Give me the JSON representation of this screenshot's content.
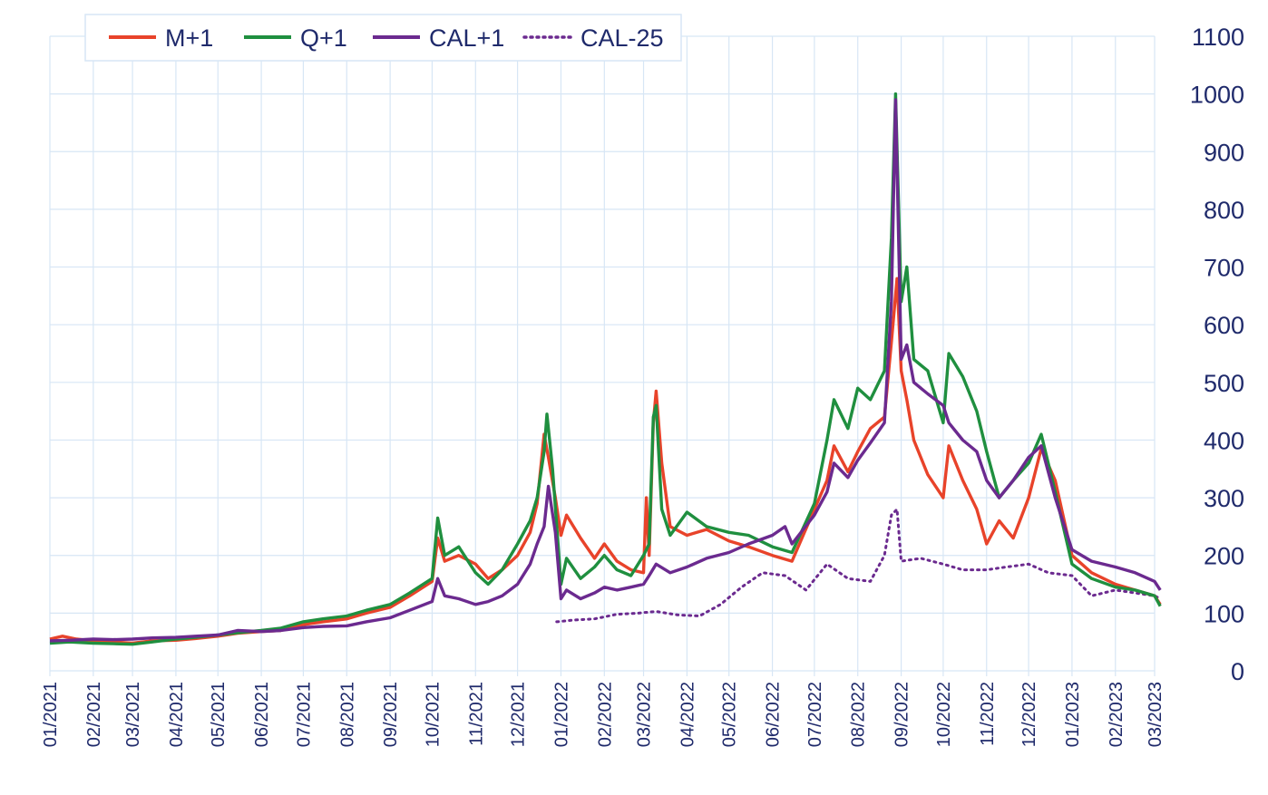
{
  "chart_data": {
    "type": "line",
    "title": "",
    "xlabel": "",
    "ylabel": "",
    "ylim": [
      0,
      1100
    ],
    "y_axis_side": "right",
    "y_ticks": [
      "0",
      "100",
      "200",
      "300",
      "400",
      "500",
      "600",
      "700",
      "800",
      "900",
      "1000",
      "1100"
    ],
    "x_ticks": [
      "01/2021",
      "02/2021",
      "03/2021",
      "04/2021",
      "05/2021",
      "06/2021",
      "07/2021",
      "08/2021",
      "09/2021",
      "10/2021",
      "11/2021",
      "12/2021",
      "01/2022",
      "02/2022",
      "03/2022",
      "04/2022",
      "05/2022",
      "06/2022",
      "07/2022",
      "08/2022",
      "09/2022",
      "10/2022",
      "11/2022",
      "12/2022",
      "01/2023",
      "02/2023",
      "03/2023"
    ],
    "grid": true,
    "legend_position": "top-left",
    "series": [
      {
        "name": "M+1",
        "color": "#e8432a",
        "style": "solid",
        "points": [
          [
            "2021-01-01",
            55
          ],
          [
            "2021-01-10",
            60
          ],
          [
            "2021-01-20",
            55
          ],
          [
            "2021-02-01",
            52
          ],
          [
            "2021-02-15",
            50
          ],
          [
            "2021-03-01",
            48
          ],
          [
            "2021-03-15",
            52
          ],
          [
            "2021-04-01",
            53
          ],
          [
            "2021-04-15",
            56
          ],
          [
            "2021-05-01",
            60
          ],
          [
            "2021-05-15",
            65
          ],
          [
            "2021-06-01",
            68
          ],
          [
            "2021-06-15",
            70
          ],
          [
            "2021-07-01",
            80
          ],
          [
            "2021-07-15",
            85
          ],
          [
            "2021-08-01",
            90
          ],
          [
            "2021-08-15",
            100
          ],
          [
            "2021-09-01",
            110
          ],
          [
            "2021-09-15",
            130
          ],
          [
            "2021-10-01",
            155
          ],
          [
            "2021-10-05",
            230
          ],
          [
            "2021-10-10",
            190
          ],
          [
            "2021-10-20",
            200
          ],
          [
            "2021-11-01",
            185
          ],
          [
            "2021-11-10",
            160
          ],
          [
            "2021-11-20",
            175
          ],
          [
            "2021-12-01",
            200
          ],
          [
            "2021-12-10",
            240
          ],
          [
            "2021-12-15",
            290
          ],
          [
            "2021-12-20",
            410
          ],
          [
            "2021-12-23",
            370
          ],
          [
            "2021-12-28",
            300
          ],
          [
            "2022-01-01",
            235
          ],
          [
            "2022-01-05",
            270
          ],
          [
            "2022-01-15",
            230
          ],
          [
            "2022-01-25",
            195
          ],
          [
            "2022-02-01",
            220
          ],
          [
            "2022-02-10",
            190
          ],
          [
            "2022-02-20",
            175
          ],
          [
            "2022-03-01",
            170
          ],
          [
            "2022-03-03",
            300
          ],
          [
            "2022-03-05",
            200
          ],
          [
            "2022-03-08",
            430
          ],
          [
            "2022-03-10",
            485
          ],
          [
            "2022-03-14",
            360
          ],
          [
            "2022-03-20",
            250
          ],
          [
            "2022-04-01",
            235
          ],
          [
            "2022-04-15",
            245
          ],
          [
            "2022-05-01",
            225
          ],
          [
            "2022-05-15",
            215
          ],
          [
            "2022-06-01",
            200
          ],
          [
            "2022-06-15",
            190
          ],
          [
            "2022-07-01",
            280
          ],
          [
            "2022-07-10",
            330
          ],
          [
            "2022-07-15",
            390
          ],
          [
            "2022-07-25",
            345
          ],
          [
            "2022-08-01",
            380
          ],
          [
            "2022-08-10",
            420
          ],
          [
            "2022-08-20",
            440
          ],
          [
            "2022-08-25",
            570
          ],
          [
            "2022-08-29",
            680
          ],
          [
            "2022-09-01",
            520
          ],
          [
            "2022-09-05",
            470
          ],
          [
            "2022-09-10",
            400
          ],
          [
            "2022-09-20",
            340
          ],
          [
            "2022-10-01",
            300
          ],
          [
            "2022-10-05",
            390
          ],
          [
            "2022-10-15",
            330
          ],
          [
            "2022-10-25",
            280
          ],
          [
            "2022-11-01",
            220
          ],
          [
            "2022-11-10",
            260
          ],
          [
            "2022-11-20",
            230
          ],
          [
            "2022-12-01",
            300
          ],
          [
            "2022-12-10",
            385
          ],
          [
            "2022-12-20",
            330
          ],
          [
            "2023-01-01",
            200
          ],
          [
            "2023-01-15",
            170
          ],
          [
            "2023-02-01",
            150
          ],
          [
            "2023-02-15",
            140
          ],
          [
            "2023-03-01",
            130
          ],
          [
            "2023-03-05",
            115
          ]
        ]
      },
      {
        "name": "Q+1",
        "color": "#1f8f3f",
        "style": "solid",
        "points": [
          [
            "2021-01-01",
            48
          ],
          [
            "2021-01-15",
            50
          ],
          [
            "2021-02-01",
            48
          ],
          [
            "2021-02-15",
            47
          ],
          [
            "2021-03-01",
            46
          ],
          [
            "2021-03-15",
            50
          ],
          [
            "2021-04-01",
            55
          ],
          [
            "2021-04-15",
            58
          ],
          [
            "2021-05-01",
            62
          ],
          [
            "2021-05-15",
            66
          ],
          [
            "2021-06-01",
            70
          ],
          [
            "2021-06-15",
            74
          ],
          [
            "2021-07-01",
            85
          ],
          [
            "2021-07-15",
            90
          ],
          [
            "2021-08-01",
            95
          ],
          [
            "2021-08-15",
            105
          ],
          [
            "2021-09-01",
            115
          ],
          [
            "2021-09-15",
            135
          ],
          [
            "2021-10-01",
            160
          ],
          [
            "2021-10-05",
            265
          ],
          [
            "2021-10-10",
            200
          ],
          [
            "2021-10-20",
            215
          ],
          [
            "2021-11-01",
            170
          ],
          [
            "2021-11-10",
            150
          ],
          [
            "2021-11-20",
            175
          ],
          [
            "2021-12-01",
            220
          ],
          [
            "2021-12-10",
            260
          ],
          [
            "2021-12-15",
            300
          ],
          [
            "2021-12-20",
            380
          ],
          [
            "2021-12-22",
            445
          ],
          [
            "2021-12-26",
            350
          ],
          [
            "2022-01-01",
            150
          ],
          [
            "2022-01-05",
            195
          ],
          [
            "2022-01-15",
            160
          ],
          [
            "2022-01-25",
            180
          ],
          [
            "2022-02-01",
            200
          ],
          [
            "2022-02-10",
            175
          ],
          [
            "2022-02-20",
            165
          ],
          [
            "2022-03-01",
            200
          ],
          [
            "2022-03-05",
            220
          ],
          [
            "2022-03-08",
            440
          ],
          [
            "2022-03-10",
            460
          ],
          [
            "2022-03-14",
            280
          ],
          [
            "2022-03-20",
            235
          ],
          [
            "2022-04-01",
            275
          ],
          [
            "2022-04-15",
            250
          ],
          [
            "2022-05-01",
            240
          ],
          [
            "2022-05-15",
            235
          ],
          [
            "2022-06-01",
            215
          ],
          [
            "2022-06-15",
            205
          ],
          [
            "2022-07-01",
            290
          ],
          [
            "2022-07-10",
            400
          ],
          [
            "2022-07-15",
            470
          ],
          [
            "2022-07-25",
            420
          ],
          [
            "2022-08-01",
            490
          ],
          [
            "2022-08-10",
            470
          ],
          [
            "2022-08-20",
            520
          ],
          [
            "2022-08-25",
            750
          ],
          [
            "2022-08-28",
            1000
          ],
          [
            "2022-09-01",
            640
          ],
          [
            "2022-09-05",
            700
          ],
          [
            "2022-09-10",
            540
          ],
          [
            "2022-09-20",
            520
          ],
          [
            "2022-10-01",
            430
          ],
          [
            "2022-10-05",
            550
          ],
          [
            "2022-10-15",
            510
          ],
          [
            "2022-10-25",
            450
          ],
          [
            "2022-11-01",
            380
          ],
          [
            "2022-11-10",
            300
          ],
          [
            "2022-11-20",
            330
          ],
          [
            "2022-12-01",
            360
          ],
          [
            "2022-12-10",
            410
          ],
          [
            "2022-12-20",
            310
          ],
          [
            "2023-01-01",
            185
          ],
          [
            "2023-01-15",
            160
          ],
          [
            "2023-02-01",
            145
          ],
          [
            "2023-02-15",
            140
          ],
          [
            "2023-03-01",
            130
          ],
          [
            "2023-03-05",
            112
          ]
        ]
      },
      {
        "name": "CAL+1",
        "color": "#6b2a8f",
        "style": "solid",
        "points": [
          [
            "2021-01-01",
            52
          ],
          [
            "2021-01-15",
            53
          ],
          [
            "2021-02-01",
            55
          ],
          [
            "2021-02-15",
            54
          ],
          [
            "2021-03-01",
            55
          ],
          [
            "2021-03-15",
            57
          ],
          [
            "2021-04-01",
            58
          ],
          [
            "2021-04-15",
            60
          ],
          [
            "2021-05-01",
            62
          ],
          [
            "2021-05-15",
            70
          ],
          [
            "2021-06-01",
            68
          ],
          [
            "2021-06-15",
            70
          ],
          [
            "2021-07-01",
            75
          ],
          [
            "2021-07-15",
            77
          ],
          [
            "2021-08-01",
            78
          ],
          [
            "2021-08-15",
            85
          ],
          [
            "2021-09-01",
            92
          ],
          [
            "2021-09-15",
            105
          ],
          [
            "2021-10-01",
            120
          ],
          [
            "2021-10-05",
            160
          ],
          [
            "2021-10-10",
            130
          ],
          [
            "2021-10-20",
            125
          ],
          [
            "2021-11-01",
            115
          ],
          [
            "2021-11-10",
            120
          ],
          [
            "2021-11-20",
            130
          ],
          [
            "2021-12-01",
            150
          ],
          [
            "2021-12-10",
            185
          ],
          [
            "2021-12-15",
            220
          ],
          [
            "2021-12-20",
            250
          ],
          [
            "2021-12-23",
            320
          ],
          [
            "2021-12-28",
            240
          ],
          [
            "2022-01-01",
            125
          ],
          [
            "2022-01-05",
            140
          ],
          [
            "2022-01-15",
            125
          ],
          [
            "2022-01-25",
            135
          ],
          [
            "2022-02-01",
            145
          ],
          [
            "2022-02-10",
            140
          ],
          [
            "2022-02-20",
            145
          ],
          [
            "2022-03-01",
            150
          ],
          [
            "2022-03-05",
            165
          ],
          [
            "2022-03-10",
            185
          ],
          [
            "2022-03-20",
            170
          ],
          [
            "2022-04-01",
            180
          ],
          [
            "2022-04-15",
            195
          ],
          [
            "2022-05-01",
            205
          ],
          [
            "2022-05-15",
            220
          ],
          [
            "2022-06-01",
            235
          ],
          [
            "2022-06-10",
            250
          ],
          [
            "2022-06-15",
            220
          ],
          [
            "2022-07-01",
            270
          ],
          [
            "2022-07-10",
            310
          ],
          [
            "2022-07-15",
            360
          ],
          [
            "2022-07-25",
            335
          ],
          [
            "2022-08-01",
            365
          ],
          [
            "2022-08-10",
            395
          ],
          [
            "2022-08-20",
            430
          ],
          [
            "2022-08-25",
            640
          ],
          [
            "2022-08-28",
            990
          ],
          [
            "2022-09-01",
            540
          ],
          [
            "2022-09-05",
            565
          ],
          [
            "2022-09-10",
            500
          ],
          [
            "2022-09-20",
            480
          ],
          [
            "2022-10-01",
            460
          ],
          [
            "2022-10-05",
            430
          ],
          [
            "2022-10-15",
            400
          ],
          [
            "2022-10-25",
            380
          ],
          [
            "2022-11-01",
            330
          ],
          [
            "2022-11-10",
            300
          ],
          [
            "2022-11-20",
            330
          ],
          [
            "2022-12-01",
            370
          ],
          [
            "2022-12-10",
            390
          ],
          [
            "2022-12-20",
            300
          ],
          [
            "2023-01-01",
            210
          ],
          [
            "2023-01-15",
            190
          ],
          [
            "2023-02-01",
            180
          ],
          [
            "2023-02-15",
            170
          ],
          [
            "2023-03-01",
            155
          ],
          [
            "2023-03-05",
            140
          ]
        ]
      },
      {
        "name": "CAL-25",
        "color": "#6b2a8f",
        "style": "dotted",
        "points": [
          [
            "2021-12-29",
            85
          ],
          [
            "2022-01-10",
            88
          ],
          [
            "2022-01-25",
            90
          ],
          [
            "2022-02-10",
            98
          ],
          [
            "2022-02-25",
            100
          ],
          [
            "2022-03-10",
            103
          ],
          [
            "2022-03-25",
            97
          ],
          [
            "2022-04-10",
            95
          ],
          [
            "2022-04-25",
            115
          ],
          [
            "2022-05-10",
            145
          ],
          [
            "2022-05-25",
            170
          ],
          [
            "2022-06-10",
            165
          ],
          [
            "2022-06-25",
            140
          ],
          [
            "2022-07-10",
            185
          ],
          [
            "2022-07-25",
            160
          ],
          [
            "2022-08-10",
            155
          ],
          [
            "2022-08-20",
            200
          ],
          [
            "2022-08-25",
            270
          ],
          [
            "2022-08-29",
            280
          ],
          [
            "2022-09-01",
            190
          ],
          [
            "2022-09-15",
            195
          ],
          [
            "2022-10-01",
            185
          ],
          [
            "2022-10-15",
            175
          ],
          [
            "2022-11-01",
            175
          ],
          [
            "2022-11-15",
            180
          ],
          [
            "2022-12-01",
            185
          ],
          [
            "2022-12-15",
            170
          ],
          [
            "2023-01-01",
            165
          ],
          [
            "2023-01-15",
            130
          ],
          [
            "2023-02-01",
            140
          ],
          [
            "2023-02-15",
            135
          ],
          [
            "2023-03-01",
            130
          ],
          [
            "2023-03-05",
            125
          ]
        ]
      }
    ]
  }
}
